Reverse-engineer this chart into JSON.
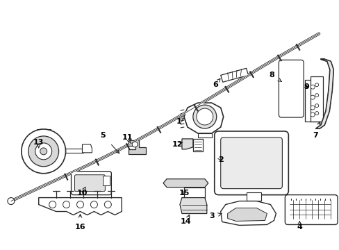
{
  "background_color": "#ffffff",
  "line_color": "#2a2a2a",
  "label_color": "#000000",
  "figsize": [
    4.89,
    3.6
  ],
  "dpi": 100,
  "parts": {
    "tube_color": "#2a2a2a",
    "label_fontsize": 7.5
  }
}
